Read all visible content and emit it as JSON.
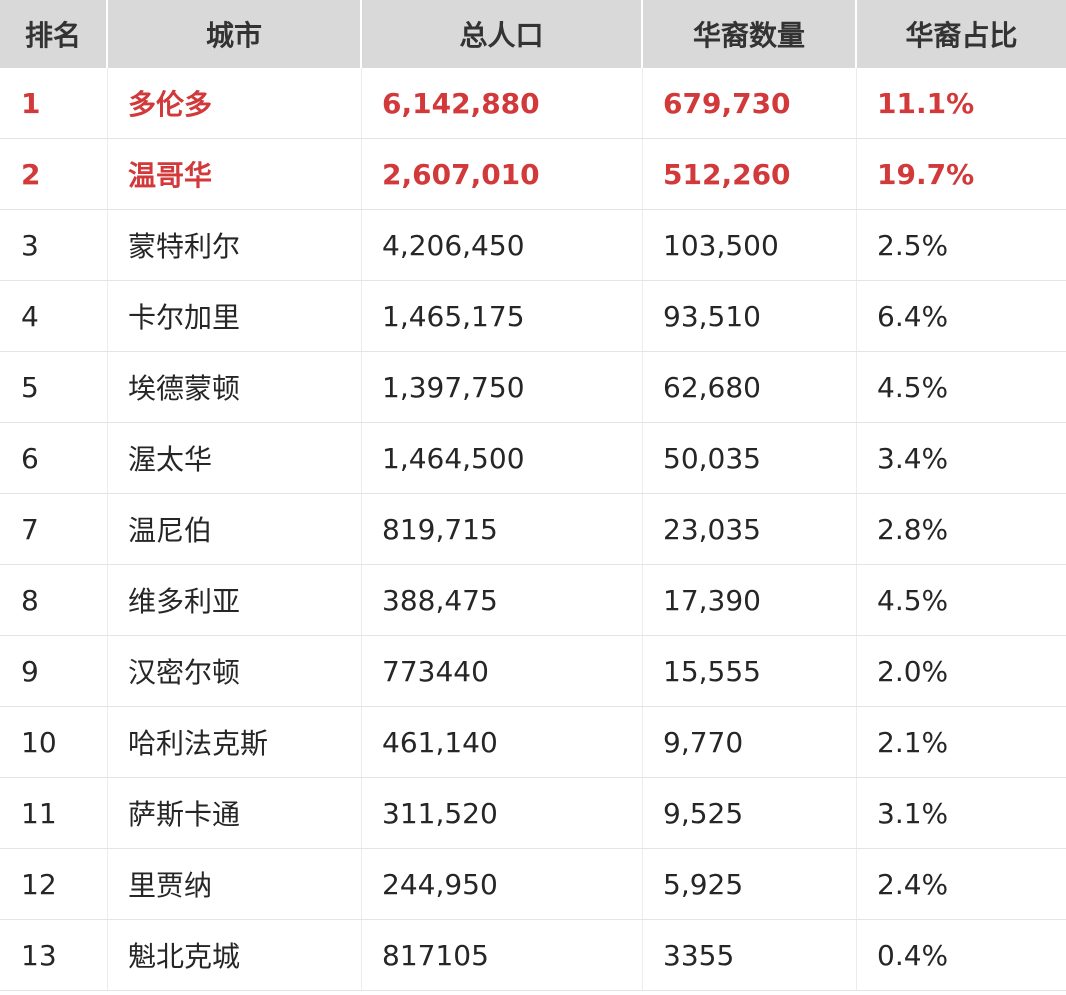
{
  "accent_color": "#d1393a",
  "header_bg": "#d9d9d9",
  "headers": {
    "rank": "排名",
    "city": "城市",
    "population": "总人口",
    "chinese_count": "华裔数量",
    "chinese_pct": "华裔占比"
  },
  "rows": [
    {
      "rank": "1",
      "city": "多伦多",
      "population": "6,142,880",
      "chinese_count": "679,730",
      "chinese_pct": "11.1%",
      "highlight": true
    },
    {
      "rank": "2",
      "city": "温哥华",
      "population": "2,607,010",
      "chinese_count": "512,260",
      "chinese_pct": "19.7%",
      "highlight": true
    },
    {
      "rank": "3",
      "city": "蒙特利尔",
      "population": "4,206,450",
      "chinese_count": "103,500",
      "chinese_pct": "2.5%",
      "highlight": false
    },
    {
      "rank": "4",
      "city": "卡尔加里",
      "population": "1,465,175",
      "chinese_count": "93,510",
      "chinese_pct": "6.4%",
      "highlight": false
    },
    {
      "rank": "5",
      "city": "埃德蒙顿",
      "population": "1,397,750",
      "chinese_count": "62,680",
      "chinese_pct": "4.5%",
      "highlight": false
    },
    {
      "rank": "6",
      "city": "渥太华",
      "population": "1,464,500",
      "chinese_count": "50,035",
      "chinese_pct": "3.4%",
      "highlight": false
    },
    {
      "rank": "7",
      "city": "温尼伯",
      "population": "819,715",
      "chinese_count": "23,035",
      "chinese_pct": "2.8%",
      "highlight": false
    },
    {
      "rank": "8",
      "city": "维多利亚",
      "population": "388,475",
      "chinese_count": "17,390",
      "chinese_pct": "4.5%",
      "highlight": false
    },
    {
      "rank": "9",
      "city": "汉密尔顿",
      "population": "773440",
      "chinese_count": "15,555",
      "chinese_pct": "2.0%",
      "highlight": false
    },
    {
      "rank": "10",
      "city": "哈利法克斯",
      "population": "461,140",
      "chinese_count": "9,770",
      "chinese_pct": "2.1%",
      "highlight": false
    },
    {
      "rank": "11",
      "city": "萨斯卡通",
      "population": "311,520",
      "chinese_count": "9,525",
      "chinese_pct": "3.1%",
      "highlight": false
    },
    {
      "rank": "12",
      "city": "里贾纳",
      "population": "244,950",
      "chinese_count": "5,925",
      "chinese_pct": "2.4%",
      "highlight": false
    },
    {
      "rank": "13",
      "city": "魁北克城",
      "population": "817105",
      "chinese_count": "3355",
      "chinese_pct": "0.4%",
      "highlight": false
    }
  ]
}
